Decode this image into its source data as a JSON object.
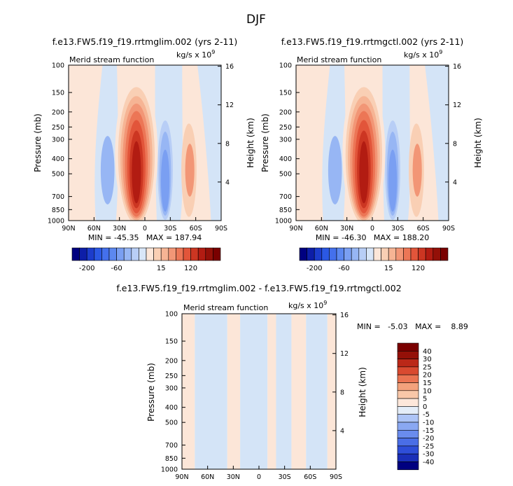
{
  "figure": {
    "title": "DJF"
  },
  "chart_data": [
    {
      "type": "heatmap",
      "title": "f.e13.FW5.f19_f19.rrtmglim.002 (yrs 2-11)",
      "subtitle": "Merid stream function",
      "units": "kg/s x 10",
      "units_exp": "9",
      "ylabel": "Pressure (mb)",
      "ylabel_right": "Height (km)",
      "x_ticks": [
        "90N",
        "60N",
        "30N",
        "0",
        "30S",
        "60S",
        "90S"
      ],
      "y_ticks": [
        "100",
        "150",
        "200",
        "250",
        "300",
        "400",
        "500",
        "700",
        "850",
        "1000"
      ],
      "y_right_ticks": [
        "16",
        "12",
        "8",
        "4"
      ],
      "xlim": [
        "90N",
        "90S"
      ],
      "ylim": [
        1000,
        100
      ],
      "y_scale": "log",
      "min": -45.35,
      "max": 187.94,
      "stats_text": "MIN = -45.35   MAX = 187.94",
      "features": [
        {
          "lat": 8,
          "value": 187.94,
          "p_top": 110
        },
        {
          "lat": -22,
          "value": -45.35,
          "p_top": 190
        },
        {
          "lat": 40,
          "value": -20,
          "p_top": 210
        },
        {
          "lat": -53,
          "value": 20,
          "p_top": 250
        },
        {
          "lat": 65,
          "value": 5,
          "p_top": 100
        },
        {
          "lat": -70,
          "value": -5,
          "p_top": 100
        }
      ]
    },
    {
      "type": "heatmap",
      "title": "f.e13.FW5.f19_f19.rrtmgctl.002 (yrs 2-11)",
      "subtitle": "Merid stream function",
      "units": "kg/s x 10",
      "units_exp": "9",
      "ylabel": "Pressure (mb)",
      "ylabel_right": "Height (km)",
      "x_ticks": [
        "90N",
        "60N",
        "30N",
        "0",
        "30S",
        "60S",
        "90S"
      ],
      "y_ticks": [
        "100",
        "150",
        "200",
        "250",
        "300",
        "400",
        "500",
        "700",
        "850",
        "1000"
      ],
      "y_right_ticks": [
        "16",
        "12",
        "8",
        "4"
      ],
      "xlim": [
        "90N",
        "90S"
      ],
      "ylim": [
        1000,
        100
      ],
      "y_scale": "log",
      "min": -46.3,
      "max": 188.2,
      "stats_text": "MIN = -46.30   MAX = 188.20",
      "features": [
        {
          "lat": 8,
          "value": 188.2,
          "p_top": 110
        },
        {
          "lat": -22,
          "value": -46.3,
          "p_top": 190
        },
        {
          "lat": 40,
          "value": -20,
          "p_top": 210
        },
        {
          "lat": -53,
          "value": 20,
          "p_top": 250
        },
        {
          "lat": 65,
          "value": 5,
          "p_top": 100
        },
        {
          "lat": -70,
          "value": -5,
          "p_top": 100
        }
      ]
    },
    {
      "type": "heatmap",
      "title": "f.e13.FW5.f19_f19.rrtmglim.002 - f.e13.FW5.f19_f19.rrtmgctl.002",
      "subtitle": "Merid stream function",
      "units": "kg/s x 10",
      "units_exp": "9",
      "ylabel": "Pressure (mb)",
      "ylabel_right": "Height (km)",
      "x_ticks": [
        "90N",
        "60N",
        "30N",
        "0",
        "30S",
        "60S",
        "90S"
      ],
      "y_ticks": [
        "100",
        "150",
        "200",
        "250",
        "300",
        "400",
        "500",
        "700",
        "850",
        "1000"
      ],
      "y_right_ticks": [
        "16",
        "12",
        "8",
        "4"
      ],
      "xlim": [
        "90N",
        "90S"
      ],
      "ylim": [
        1000,
        100
      ],
      "y_scale": "log",
      "min": -5.03,
      "max": 8.89,
      "stats_text": "MIN =   -5.03   MAX =    8.89",
      "bands": [
        {
          "lat_from": 90,
          "lat_to": 75,
          "sign": "+"
        },
        {
          "lat_from": 75,
          "lat_to": 37,
          "sign": "-"
        },
        {
          "lat_from": 37,
          "lat_to": 22,
          "sign": "+"
        },
        {
          "lat_from": 22,
          "lat_to": -10,
          "sign": "-"
        },
        {
          "lat_from": -10,
          "lat_to": -20,
          "sign": "+"
        },
        {
          "lat_from": -20,
          "lat_to": -38,
          "sign": "-"
        },
        {
          "lat_from": -38,
          "lat_to": -55,
          "sign": "+"
        },
        {
          "lat_from": -55,
          "lat_to": -80,
          "sign": "-"
        },
        {
          "lat_from": -80,
          "lat_to": -90,
          "sign": "+"
        }
      ]
    }
  ],
  "colorbar_top": {
    "colors": [
      "#000080",
      "#0d1ea8",
      "#1c3ccc",
      "#2b58e4",
      "#4470ec",
      "#5c88f0",
      "#7a9ff2",
      "#97b6f4",
      "#b8cef6",
      "#d8e6f8",
      "#fce6d8",
      "#f9cfb4",
      "#f6b494",
      "#f29676",
      "#ec7656",
      "#e2553a",
      "#cc3622",
      "#b21c12",
      "#941008",
      "#7a0000"
    ],
    "labels": [
      "-200",
      "-60",
      "15",
      "120"
    ]
  },
  "colorbar_diff": {
    "colors": [
      "#000080",
      "#1a2fb8",
      "#2e4ed8",
      "#4a6ee6",
      "#6a8cee",
      "#8aa8f2",
      "#adc4f6",
      "#e4edf8",
      "#fde7da",
      "#f9c7a8",
      "#f3a27c",
      "#ea7452",
      "#d94a30",
      "#bb2818",
      "#941008",
      "#7a0000"
    ],
    "labels": [
      "40",
      "30",
      "25",
      "20",
      "15",
      "10",
      "5",
      "0",
      "-5",
      "-10",
      "-15",
      "-20",
      "-25",
      "-30",
      "-40"
    ]
  },
  "colors": {
    "pos_light": "#fce6d8",
    "neg_light": "#d4e4f7"
  }
}
